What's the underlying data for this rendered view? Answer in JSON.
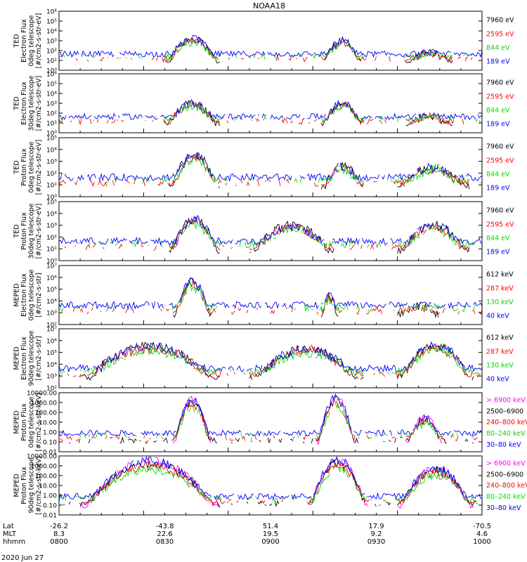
{
  "title": "NOAA18",
  "date_label": "2020 Jun 27",
  "colors": {
    "black": "#000000",
    "red": "#ff0000",
    "green": "#00dd00",
    "blue": "#0000ff",
    "magenta": "#ff00ff"
  },
  "ephemeris": {
    "row_labels": [
      "Lat",
      "MLT",
      "hhmm"
    ],
    "columns": [
      {
        "lat": "-26.2",
        "mlt": "8.3",
        "hhmm": "0800"
      },
      {
        "lat": "-43.8",
        "mlt": "22.6",
        "hhmm": "0830"
      },
      {
        "lat": "51.4",
        "mlt": "19.5",
        "hhmm": "0900"
      },
      {
        "lat": "17.9",
        "mlt": "9.2",
        "hhmm": "0930"
      },
      {
        "lat": "-70.5",
        "mlt": "4.6",
        "hhmm": "1000"
      }
    ]
  },
  "chart_data": [
    {
      "type": "line",
      "ylabel": [
        "TED",
        "Electron Flux",
        "0deg telescope",
        "[#/cm2-s-str-eV]"
      ],
      "scale": "log",
      "yticks": [
        "10⁰",
        "10¹",
        "10²",
        "10³",
        "10⁴",
        "10⁵",
        "10⁶"
      ],
      "ylim": [
        0,
        6
      ],
      "series": [
        {
          "name": "7960 eV",
          "color": "black"
        },
        {
          "name": "2595 eV",
          "color": "red"
        },
        {
          "name": "844 eV",
          "color": "green"
        },
        {
          "name": "189 eV",
          "color": "blue"
        }
      ],
      "bursts": [
        [
          0.25,
          0.38,
          3.2
        ],
        [
          0.62,
          0.72,
          3.0
        ],
        [
          0.82,
          0.93,
          1.8
        ]
      ]
    },
    {
      "type": "line",
      "ylabel": [
        "TED",
        "Electron Flux",
        "30deg telescope",
        "[#/cm2-s-str-eV]"
      ],
      "scale": "log",
      "yticks": [
        "10⁰",
        "10¹",
        "10²",
        "10³",
        "10⁴",
        "10⁵",
        "10⁶"
      ],
      "ylim": [
        0,
        6
      ],
      "series": [
        {
          "name": "7960 eV",
          "color": "black"
        },
        {
          "name": "2595 eV",
          "color": "red"
        },
        {
          "name": "844 eV",
          "color": "green"
        },
        {
          "name": "189 eV",
          "color": "blue"
        }
      ],
      "bursts": [
        [
          0.25,
          0.38,
          3.0
        ],
        [
          0.62,
          0.72,
          3.0
        ],
        [
          0.82,
          0.93,
          1.8
        ]
      ]
    },
    {
      "type": "line",
      "ylabel": [
        "TED",
        "Proton Flux",
        "0deg telescope",
        "[#/cm2-s-str-eV]"
      ],
      "scale": "log",
      "yticks": [
        "10⁰",
        "10¹",
        "10²",
        "10³",
        "10⁴",
        "10⁵"
      ],
      "ylim": [
        0,
        5
      ],
      "series": [
        {
          "name": "7960 eV",
          "color": "black"
        },
        {
          "name": "2595 eV",
          "color": "red"
        },
        {
          "name": "844 eV",
          "color": "green"
        },
        {
          "name": "189 eV",
          "color": "blue"
        }
      ],
      "bursts": [
        [
          0.26,
          0.38,
          3.5
        ],
        [
          0.62,
          0.72,
          2.6
        ],
        [
          0.8,
          0.97,
          2.5
        ]
      ]
    },
    {
      "type": "line",
      "ylabel": [
        "TED",
        "Proton Flux",
        "30deg telescope",
        "[#/cm2-s-str-eV]"
      ],
      "scale": "log",
      "yticks": [
        "10⁰",
        "10¹",
        "10²",
        "10³",
        "10⁴",
        "10⁵"
      ],
      "ylim": [
        0,
        5
      ],
      "series": [
        {
          "name": "7960 eV",
          "color": "black"
        },
        {
          "name": "2595 eV",
          "color": "red"
        },
        {
          "name": "844 eV",
          "color": "green"
        },
        {
          "name": "189 eV",
          "color": "blue"
        }
      ],
      "bursts": [
        [
          0.26,
          0.38,
          3.5
        ],
        [
          0.45,
          0.65,
          3.0
        ],
        [
          0.8,
          0.97,
          3.0
        ]
      ]
    },
    {
      "type": "line",
      "ylabel": [
        "MEPED",
        "Electron Flux",
        "0deg telescope",
        "[#/cm2-s-str]"
      ],
      "scale": "log",
      "yticks": [
        "10²",
        "10³",
        "10⁴",
        "10⁵",
        "10⁶",
        "10⁷"
      ],
      "ylim": [
        2,
        7
      ],
      "series": [
        {
          "name": "612 keV",
          "color": "black"
        },
        {
          "name": "287 keV",
          "color": "red"
        },
        {
          "name": "130 keV",
          "color": "green"
        },
        {
          "name": "40 keV",
          "color": "blue"
        }
      ],
      "bursts": [
        [
          0.27,
          0.36,
          5.6
        ],
        [
          0.62,
          0.66,
          4.4
        ],
        [
          0.8,
          0.9,
          3.6
        ]
      ]
    },
    {
      "type": "line",
      "ylabel": [
        "MEPED",
        "Electron Flux",
        "90deg telescope",
        "[#/cm2-s-str]"
      ],
      "scale": "log",
      "yticks": [
        "10²",
        "10³",
        "10⁴",
        "10⁵",
        "10⁶",
        "10⁷"
      ],
      "ylim": [
        2,
        7
      ],
      "series": [
        {
          "name": "612 keV",
          "color": "black"
        },
        {
          "name": "287 keV",
          "color": "red"
        },
        {
          "name": "130 keV",
          "color": "green"
        },
        {
          "name": "40 keV",
          "color": "blue"
        }
      ],
      "bursts": [
        [
          0.05,
          0.38,
          5.5
        ],
        [
          0.45,
          0.72,
          5.3
        ],
        [
          0.8,
          0.98,
          5.6
        ]
      ]
    },
    {
      "type": "line",
      "ylabel": [
        "MEPED",
        "Proton Flux",
        "0deg telescope",
        "[#/cm2-s-str-keV]"
      ],
      "scale": "log",
      "yticks": [
        "0.01",
        "0.10",
        "1.00",
        "10.00",
        "100.00",
        "1000.00",
        "10000.00"
      ],
      "ylim": [
        -2,
        4
      ],
      "series": [
        {
          "name": "> 6900 keV",
          "color": "magenta"
        },
        {
          "name": "2500–6900",
          "color": "black"
        },
        {
          "name": "240–800 keV",
          "color": "red"
        },
        {
          "name": "80–240 keV",
          "color": "green"
        },
        {
          "name": "30–80 keV",
          "color": "blue"
        }
      ],
      "bursts": [
        [
          0.27,
          0.36,
          3.3
        ],
        [
          0.61,
          0.7,
          3.5
        ],
        [
          0.82,
          0.91,
          1.4
        ]
      ]
    },
    {
      "type": "line",
      "ylabel": [
        "MEPED",
        "Proton Flux",
        "90deg telescope",
        "[#/cm2-s-str-keV]"
      ],
      "scale": "log",
      "yticks": [
        "0.01",
        "0.10",
        "1.00",
        "10.00",
        "100.00",
        "1000.00",
        "10000.00"
      ],
      "ylim": [
        -2,
        4
      ],
      "series": [
        {
          "name": "> 6900 keV",
          "color": "magenta"
        },
        {
          "name": "2500–6900",
          "color": "black"
        },
        {
          "name": "240–800 keV",
          "color": "red"
        },
        {
          "name": "80–240 keV",
          "color": "green"
        },
        {
          "name": "30–80 keV",
          "color": "blue"
        }
      ],
      "bursts": [
        [
          0.05,
          0.38,
          3.5
        ],
        [
          0.59,
          0.73,
          3.6
        ],
        [
          0.8,
          0.98,
          2.8
        ]
      ]
    }
  ]
}
